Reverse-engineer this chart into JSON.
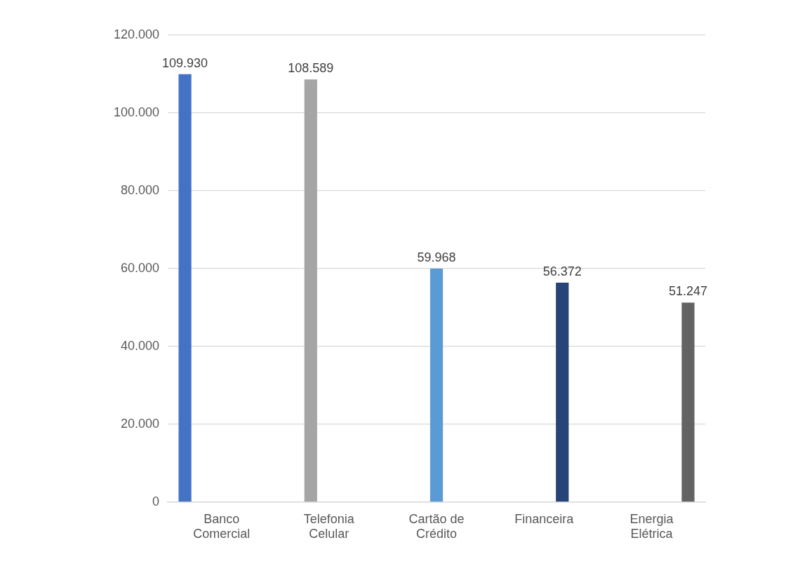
{
  "chart_data": {
    "type": "bar",
    "categories": [
      "Banco Comercial",
      "Telefonia Celular",
      "Cartão de Crédito",
      "Financeira",
      "Energia Elétrica"
    ],
    "series": [
      {
        "color": "#4472c4",
        "values": [
          109930,
          null,
          null,
          null,
          null
        ],
        "value_labels": [
          "109.930",
          null,
          null,
          null,
          null
        ]
      },
      {
        "color": "#a5a5a5",
        "values": [
          null,
          108589,
          null,
          null,
          null
        ],
        "value_labels": [
          null,
          "108.589",
          null,
          null,
          null
        ]
      },
      {
        "color": "#5b9bd5",
        "values": [
          null,
          null,
          59968,
          null,
          null
        ],
        "value_labels": [
          null,
          null,
          "59.968",
          null,
          null
        ]
      },
      {
        "color": "#264478",
        "values": [
          null,
          null,
          null,
          56372,
          null
        ],
        "value_labels": [
          null,
          null,
          null,
          "56.372",
          null
        ]
      },
      {
        "color": "#636363",
        "values": [
          null,
          null,
          null,
          null,
          51247
        ],
        "value_labels": [
          null,
          null,
          null,
          null,
          "51.247"
        ]
      }
    ],
    "ylim": [
      0,
      120000
    ],
    "yticks": [
      0,
      {
        "value": 20000,
        "label": "20.000"
      },
      {
        "value": 40000,
        "label": "40.000"
      },
      {
        "value": 60000,
        "label": "60.000"
      },
      {
        "value": 80000,
        "label": "80.000"
      },
      {
        "value": 100000,
        "label": "100.000"
      },
      {
        "value": 120000,
        "label": "120.000"
      }
    ],
    "grid": "y",
    "legend": false
  }
}
